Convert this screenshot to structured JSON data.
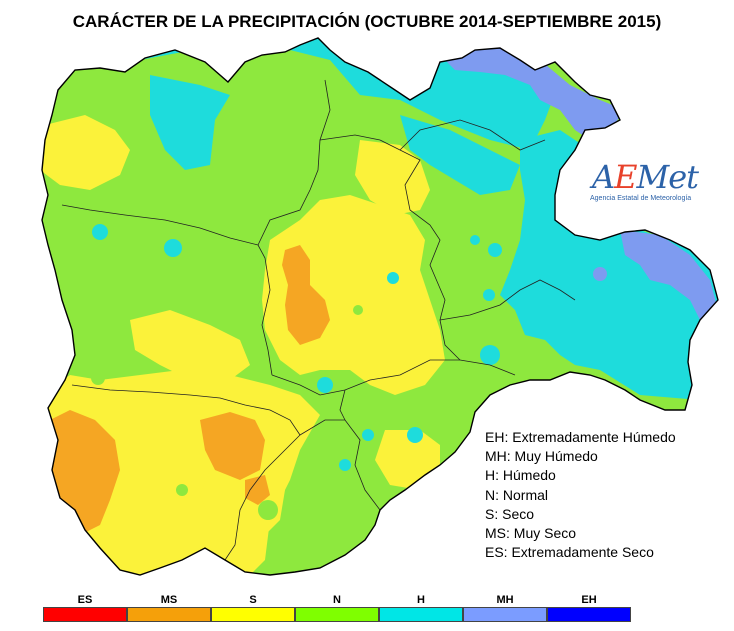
{
  "title": "CARÁCTER DE LA PRECIPITACIÓN (OCTUBRE 2014-SEPTIEMBRE 2015)",
  "logo": {
    "name": "AEMet",
    "first": "A",
    "e": "E",
    "rest": "Met",
    "subtitle": "Agencia Estatal de Meteorología"
  },
  "legend": [
    "EH: Extremadamente Húmedo",
    "MH: Muy Húmedo",
    "H: Húmedo",
    "N: Normal",
    "S: Seco",
    "MS: Muy Seco",
    "ES: Extremadamente Seco"
  ],
  "scale": [
    {
      "code": "ES",
      "color": "#ff0000"
    },
    {
      "code": "MS",
      "color": "#f5a00a"
    },
    {
      "code": "S",
      "color": "#ffff00"
    },
    {
      "code": "N",
      "color": "#7fff00"
    },
    {
      "code": "H",
      "color": "#00e6e6"
    },
    {
      "code": "MH",
      "color": "#7b9cff"
    },
    {
      "code": "EH",
      "color": "#0000ff"
    }
  ],
  "colors": {
    "ms": "#f5a623",
    "s": "#fbf23a",
    "n": "#8ee83e",
    "h": "#1edcdc",
    "mh": "#7e9bf0",
    "border": "#000000"
  }
}
